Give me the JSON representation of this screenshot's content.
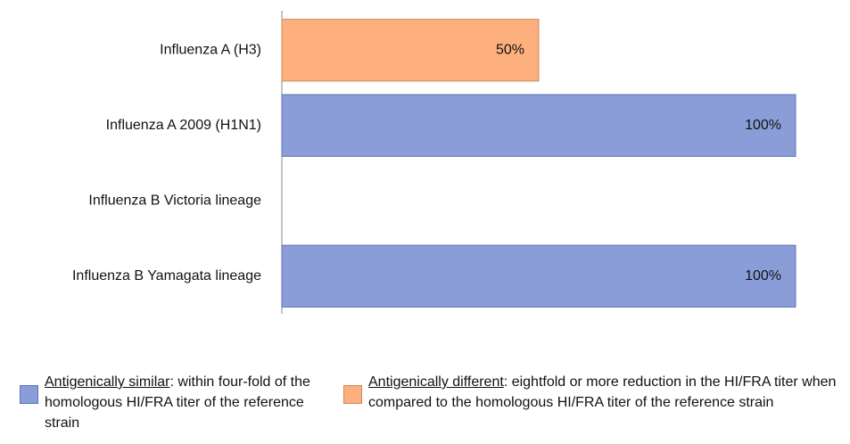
{
  "chart_data": {
    "type": "bar",
    "orientation": "horizontal",
    "categories": [
      "Influenza A (H3)",
      "Influenza A 2009 (H1N1)",
      "Influenza B Victoria lineage",
      "Influenza B Yamagata lineage"
    ],
    "xlim": [
      0,
      100
    ],
    "series": [
      {
        "name": "Antigenically similar",
        "description": ": within four-fold of the homologous HI/FRA titer of the reference strain",
        "color": "#8b9dd8",
        "border": "#5f73b5",
        "values": [
          null,
          100,
          null,
          100
        ],
        "value_labels": [
          null,
          "100%",
          null,
          "100%"
        ]
      },
      {
        "name": "Antigenically different",
        "description": ": eightfold or more reduction in the HI/FRA titer when compared to the homologous HI/FRA titer of the reference strain",
        "color": "#fdb07e",
        "border": "#c98a5e",
        "values": [
          50,
          null,
          null,
          null
        ],
        "value_labels": [
          "50%",
          null,
          null,
          null
        ]
      }
    ]
  }
}
